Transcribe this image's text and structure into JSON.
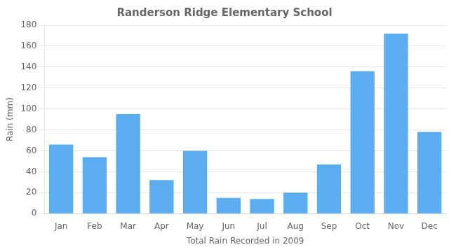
{
  "chart_data": {
    "type": "bar",
    "title": "Randerson Ridge Elementary School",
    "xlabel": "Total Rain Recorded in 2009",
    "ylabel": "Rain (mm)",
    "categories": [
      "Jan",
      "Feb",
      "Mar",
      "Apr",
      "May",
      "Jun",
      "Jul",
      "Aug",
      "Sep",
      "Oct",
      "Nov",
      "Dec"
    ],
    "values": [
      66,
      54,
      95,
      32,
      60,
      15,
      14,
      20,
      47,
      136,
      172,
      78
    ],
    "color": "#5BADF0",
    "ylim": [
      0,
      180
    ],
    "yticks": [
      0,
      20,
      40,
      60,
      80,
      100,
      120,
      140,
      160,
      180
    ],
    "grid": true
  }
}
